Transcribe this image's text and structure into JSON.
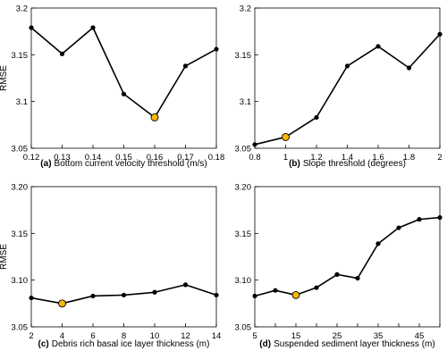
{
  "style": {
    "line_color": "#000000",
    "point_color": "#000000",
    "highlight_color": "#f5b800",
    "highlight_edge": "#000000",
    "axis_color": "#000000",
    "background": "#ffffff"
  },
  "chart_data": [
    {
      "id": "a",
      "type": "line",
      "panel_letter": "(a)",
      "xlabel": "Bottom current velocity threshold (m/s)",
      "ylabel": "RMSE",
      "xlim": [
        0.12,
        0.18
      ],
      "ylim": [
        3.05,
        3.2
      ],
      "xticks": [
        0.12,
        0.13,
        0.14,
        0.15,
        0.16,
        0.17,
        0.18
      ],
      "xtick_labels": [
        "0.12",
        "0.13",
        "0.14",
        "0.15",
        "0.16",
        "0.17",
        "0.18"
      ],
      "yticks": [
        3.05,
        3.1,
        3.15,
        3.2
      ],
      "ytick_labels": [
        "3.05",
        "3.1",
        "3.15",
        "3.2"
      ],
      "x": [
        0.12,
        0.13,
        0.14,
        0.15,
        0.16,
        0.17,
        0.18
      ],
      "y": [
        3.179,
        3.151,
        3.179,
        3.108,
        3.083,
        3.138,
        3.156
      ],
      "highlight_index": 4
    },
    {
      "id": "b",
      "type": "line",
      "panel_letter": "(b)",
      "xlabel": "Slope threshold (degrees)",
      "ylabel": "",
      "xlim": [
        0.8,
        2.0
      ],
      "ylim": [
        3.05,
        3.2
      ],
      "xticks": [
        0.8,
        1.0,
        1.2,
        1.4,
        1.6,
        1.8,
        2.0
      ],
      "xtick_labels": [
        "0.8",
        "1",
        "1.2",
        "1.4",
        "1.6",
        "1.8",
        "2"
      ],
      "yticks": [
        3.05,
        3.1,
        3.15,
        3.2
      ],
      "ytick_labels": [
        "3.05",
        "3.1",
        "3.15",
        "3.2"
      ],
      "x": [
        0.8,
        1.0,
        1.2,
        1.4,
        1.6,
        1.8,
        2.0
      ],
      "y": [
        3.054,
        3.062,
        3.083,
        3.138,
        3.159,
        3.136,
        3.172
      ],
      "highlight_index": 1
    },
    {
      "id": "c",
      "type": "line",
      "panel_letter": "(c)",
      "xlabel": "Debris rich basal ice layer thickness (m)",
      "ylabel": "RMSE",
      "xlim": [
        2,
        14
      ],
      "ylim": [
        3.05,
        3.2
      ],
      "xticks": [
        2,
        4,
        6,
        8,
        10,
        12,
        14
      ],
      "xtick_labels": [
        "2",
        "4",
        "6",
        "8",
        "10",
        "12",
        "14"
      ],
      "yticks": [
        3.05,
        3.1,
        3.15,
        3.2
      ],
      "ytick_labels": [
        "3.05",
        "3.10",
        "3.15",
        "3.20"
      ],
      "x": [
        2,
        4,
        6,
        8,
        10,
        12,
        14
      ],
      "y": [
        3.081,
        3.075,
        3.083,
        3.084,
        3.087,
        3.095,
        3.084
      ],
      "highlight_index": 1
    },
    {
      "id": "d",
      "type": "line",
      "panel_letter": "(d)",
      "xlabel": "Suspended sediment layer thickness (m)",
      "ylabel": "",
      "xlim": [
        5,
        50
      ],
      "ylim": [
        3.05,
        3.2
      ],
      "xticks": [
        5,
        15,
        25,
        35,
        45
      ],
      "xtick_labels": [
        "5",
        "15",
        "25",
        "35",
        "45"
      ],
      "minor_xticks": [
        10,
        20,
        30,
        40,
        50
      ],
      "yticks": [
        3.05,
        3.1,
        3.15,
        3.2
      ],
      "ytick_labels": [
        "3.05",
        "3.10",
        "3.15",
        "3.20"
      ],
      "x": [
        5,
        10,
        15,
        20,
        25,
        30,
        35,
        40,
        45,
        50
      ],
      "y": [
        3.083,
        3.089,
        3.084,
        3.092,
        3.106,
        3.102,
        3.139,
        3.156,
        3.165,
        3.167
      ],
      "highlight_index": 2
    }
  ]
}
